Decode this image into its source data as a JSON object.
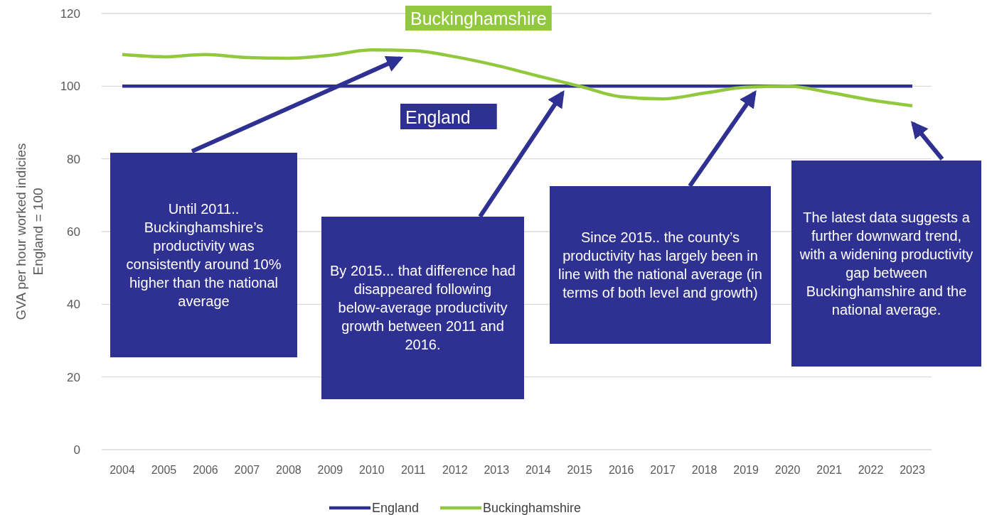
{
  "chart_data": {
    "type": "line",
    "ylabel": "GVA per hour worked indicies\nEngland = 100",
    "categories": [
      "2004",
      "2005",
      "2006",
      "2007",
      "2008",
      "2009",
      "2010",
      "2011",
      "2012",
      "2013",
      "2014",
      "2015",
      "2016",
      "2017",
      "2018",
      "2019",
      "2020",
      "2021",
      "2022",
      "2023"
    ],
    "series": [
      {
        "name": "England",
        "color": "#2e3192",
        "values": [
          100,
          100,
          100,
          100,
          100,
          100,
          100,
          100,
          100,
          100,
          100,
          100,
          100,
          100,
          100,
          100,
          100,
          100,
          100,
          100
        ]
      },
      {
        "name": "Buckinghamshire",
        "color": "#92c83e",
        "values": [
          108.7,
          108.1,
          108.7,
          107.9,
          107.7,
          108.5,
          110,
          109.8,
          108.1,
          105.7,
          102.8,
          100,
          97.1,
          96.5,
          98.1,
          99.7,
          100,
          98.3,
          96.2,
          94.6
        ]
      }
    ],
    "ylim": [
      0,
      120
    ],
    "yticks": [
      0,
      20,
      40,
      60,
      80,
      100,
      120
    ],
    "grid": "y",
    "legend": "bottom",
    "marker": "none",
    "line_style": "solid",
    "annotations": [
      "Until 2011.. Buckinghamshire’s productivity was consistently around 10% higher than the national average",
      "By 2015... that difference had disappeared following below-average productivity growth between 2011 and 2016.",
      "Since 2015.. the county’s productivity has largely been in line with the national average (in terms of both level and growth)",
      "The latest data suggests a further downward trend, with a widening productivity gap between Buckinghamshire and the national average."
    ]
  }
}
